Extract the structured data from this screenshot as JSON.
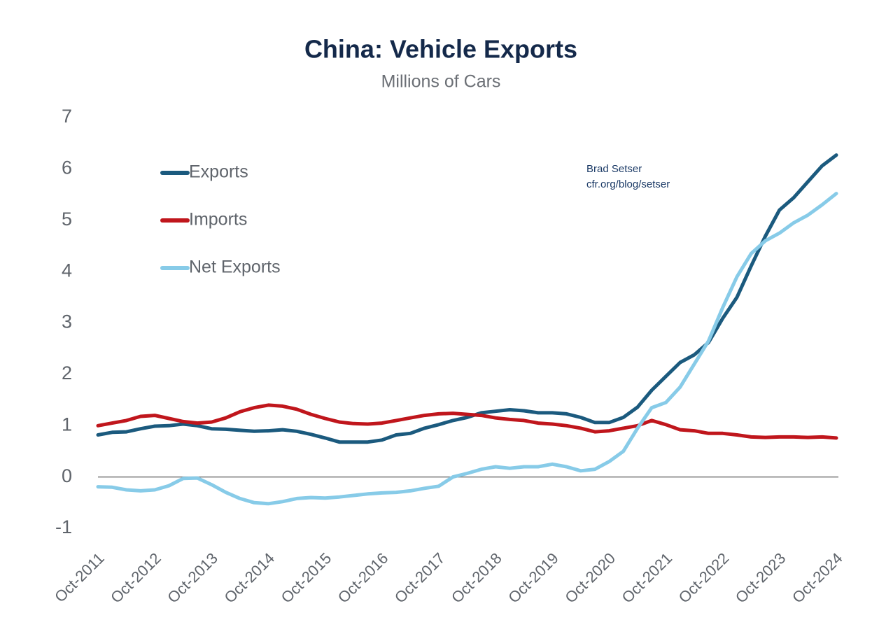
{
  "chart_data": {
    "type": "line",
    "title": "China: Vehicle Exports",
    "subtitle": "Millions of Cars",
    "annotations": [
      "Brad Setser",
      "cfr.org/blog/setser"
    ],
    "x": [
      "2011-10",
      "2012-01",
      "2012-04",
      "2012-07",
      "2012-10",
      "2013-01",
      "2013-04",
      "2013-07",
      "2013-10",
      "2014-01",
      "2014-04",
      "2014-07",
      "2014-10",
      "2015-01",
      "2015-04",
      "2015-07",
      "2015-10",
      "2016-01",
      "2016-04",
      "2016-07",
      "2016-10",
      "2017-01",
      "2017-04",
      "2017-07",
      "2017-10",
      "2018-01",
      "2018-04",
      "2018-07",
      "2018-10",
      "2019-01",
      "2019-04",
      "2019-07",
      "2019-10",
      "2020-01",
      "2020-04",
      "2020-07",
      "2020-10",
      "2021-01",
      "2021-04",
      "2021-07",
      "2021-10",
      "2022-01",
      "2022-04",
      "2022-07",
      "2022-10",
      "2023-01",
      "2023-04",
      "2023-07",
      "2023-10",
      "2024-01",
      "2024-04",
      "2024-07",
      "2024-10"
    ],
    "series": [
      {
        "name": "Exports",
        "color": "#1b5a7e",
        "values": [
          0.82,
          0.87,
          0.88,
          0.94,
          0.99,
          1.0,
          1.03,
          1.0,
          0.94,
          0.93,
          0.91,
          0.89,
          0.9,
          0.92,
          0.89,
          0.83,
          0.76,
          0.68,
          0.68,
          0.68,
          0.72,
          0.82,
          0.85,
          0.95,
          1.02,
          1.1,
          1.16,
          1.25,
          1.28,
          1.31,
          1.29,
          1.25,
          1.25,
          1.23,
          1.16,
          1.06,
          1.06,
          1.16,
          1.36,
          1.69,
          1.96,
          2.23,
          2.38,
          2.62,
          3.09,
          3.5,
          4.11,
          4.69,
          5.2,
          5.44,
          5.75,
          6.06,
          6.27
        ]
      },
      {
        "name": "Imports",
        "color": "#c0161c",
        "values": [
          1.0,
          1.05,
          1.1,
          1.18,
          1.2,
          1.14,
          1.08,
          1.05,
          1.07,
          1.15,
          1.27,
          1.35,
          1.4,
          1.38,
          1.32,
          1.22,
          1.14,
          1.07,
          1.04,
          1.03,
          1.05,
          1.1,
          1.15,
          1.2,
          1.23,
          1.24,
          1.22,
          1.2,
          1.15,
          1.12,
          1.1,
          1.05,
          1.03,
          1.0,
          0.95,
          0.88,
          0.9,
          0.95,
          1.0,
          1.1,
          1.02,
          0.92,
          0.9,
          0.85,
          0.85,
          0.82,
          0.78,
          0.77,
          0.78,
          0.78,
          0.77,
          0.78,
          0.76
        ]
      },
      {
        "name": "Net Exports",
        "color": "#87cbe8",
        "values": [
          -0.19,
          -0.2,
          -0.25,
          -0.27,
          -0.25,
          -0.17,
          -0.03,
          -0.02,
          -0.15,
          -0.3,
          -0.42,
          -0.5,
          -0.52,
          -0.48,
          -0.42,
          -0.4,
          -0.41,
          -0.39,
          -0.36,
          -0.33,
          -0.31,
          -0.3,
          -0.27,
          -0.22,
          -0.18,
          0.0,
          0.07,
          0.15,
          0.2,
          0.17,
          0.2,
          0.2,
          0.25,
          0.2,
          0.12,
          0.15,
          0.3,
          0.5,
          0.95,
          1.35,
          1.45,
          1.75,
          2.2,
          2.65,
          3.3,
          3.9,
          4.35,
          4.6,
          4.75,
          4.95,
          5.1,
          5.3,
          5.52
        ]
      }
    ],
    "xlim": [
      "2011-10",
      "2024-10"
    ],
    "xticks": [
      {
        "value": "2011-10",
        "label": "Oct-2011"
      },
      {
        "value": "2012-10",
        "label": "Oct-2012"
      },
      {
        "value": "2013-10",
        "label": "Oct-2013"
      },
      {
        "value": "2014-10",
        "label": "Oct-2014"
      },
      {
        "value": "2015-10",
        "label": "Oct-2015"
      },
      {
        "value": "2016-10",
        "label": "Oct-2016"
      },
      {
        "value": "2017-10",
        "label": "Oct-2017"
      },
      {
        "value": "2018-10",
        "label": "Oct-2018"
      },
      {
        "value": "2019-10",
        "label": "Oct-2019"
      },
      {
        "value": "2020-10",
        "label": "Oct-2020"
      },
      {
        "value": "2021-10",
        "label": "Oct-2021"
      },
      {
        "value": "2022-10",
        "label": "Oct-2022"
      },
      {
        "value": "2023-10",
        "label": "Oct-2023"
      },
      {
        "value": "2024-10",
        "label": "Oct-2024"
      }
    ],
    "ylim": [
      -1,
      7
    ],
    "yticks": [
      -1,
      0,
      1,
      2,
      3,
      4,
      5,
      6,
      7
    ],
    "grid": false,
    "legend": "upper left"
  }
}
